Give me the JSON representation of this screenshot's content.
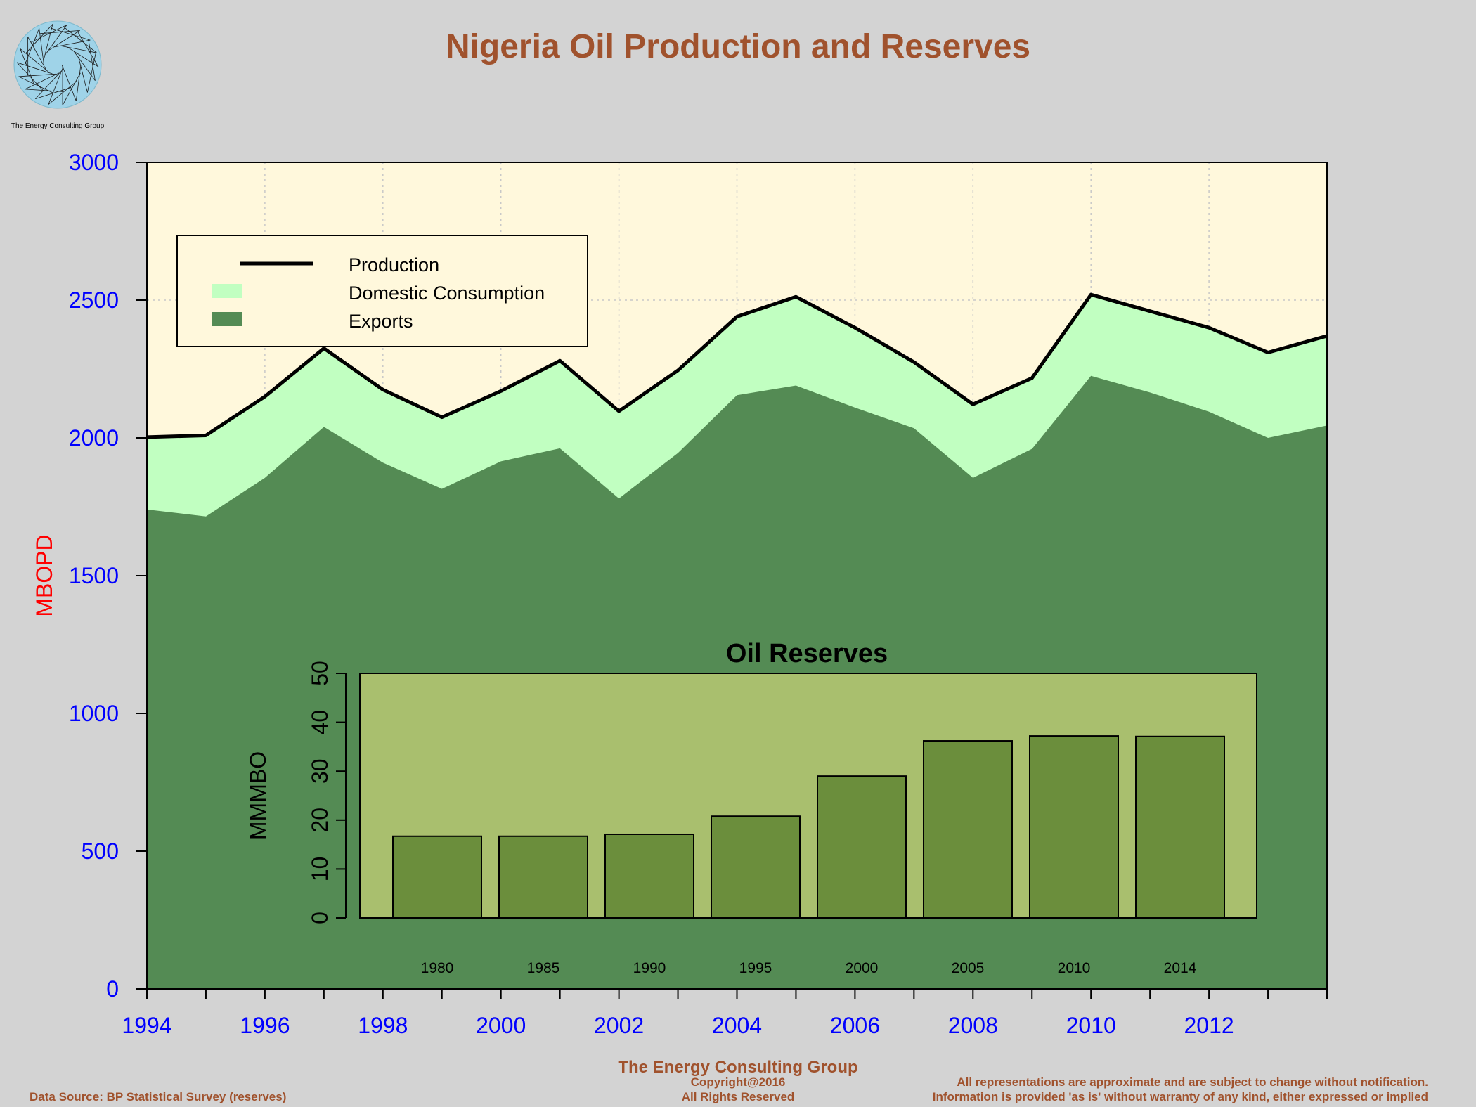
{
  "title": "Nigeria Oil Production and Reserves",
  "logo": {
    "caption": "The Energy Consulting Group",
    "icon": "spiral-logo-icon"
  },
  "colors": {
    "title": "#a0522d",
    "background": "#d3d3d3",
    "plot_background": "#fff8dc",
    "exports": "#548b54",
    "domestic": "#c1ffc1",
    "production_line": "#000000",
    "axis_ticks": "#0000ff",
    "ylabel": "#ff0000",
    "inset_background": "#a9bf6e",
    "inset_bars": "#6b8e3c",
    "footer": "#a0522d"
  },
  "chart_data": [
    {
      "type": "area",
      "title": "",
      "xlabel": "",
      "ylabel": "MBOPD",
      "xlim": [
        1994,
        2014
      ],
      "ylim": [
        0,
        3000
      ],
      "x_ticks": [
        1994,
        1996,
        1998,
        2000,
        2002,
        2004,
        2006,
        2008,
        2010,
        2012
      ],
      "y_ticks": [
        0,
        500,
        1000,
        1500,
        2000,
        2500,
        3000
      ],
      "x": [
        1994,
        1995,
        1996,
        1997,
        1998,
        1999,
        2000,
        2001,
        2002,
        2003,
        2004,
        2005,
        2006,
        2007,
        2008,
        2009,
        2010,
        2011,
        2012,
        2013,
        2014
      ],
      "series": [
        {
          "name": "Production",
          "kind": "line",
          "values": [
            2003,
            2009,
            2150,
            2325,
            2175,
            2075,
            2170,
            2280,
            2097,
            2245,
            2440,
            2512,
            2400,
            2275,
            2122,
            2217,
            2520,
            2460,
            2400,
            2310,
            2370
          ]
        },
        {
          "name": "Domestic Consumption",
          "kind": "area-top",
          "values": [
            2003,
            2009,
            2150,
            2325,
            2175,
            2075,
            2170,
            2280,
            2097,
            2245,
            2440,
            2512,
            2400,
            2275,
            2122,
            2217,
            2520,
            2460,
            2400,
            2310,
            2370
          ]
        },
        {
          "name": "Exports",
          "kind": "area",
          "values": [
            1740,
            1715,
            1855,
            2040,
            1910,
            1815,
            1915,
            1962,
            1780,
            1945,
            2155,
            2190,
            2110,
            2035,
            1855,
            1960,
            2225,
            2165,
            2095,
            2000,
            2045
          ]
        }
      ],
      "legend": {
        "position": "top-left",
        "entries": [
          "Production",
          "Domestic Consumption",
          "Exports"
        ]
      },
      "grid": true
    },
    {
      "type": "bar",
      "title": "Oil Reserves",
      "xlabel": "",
      "ylabel": "MMMBO",
      "categories": [
        "1980",
        "1985",
        "1990",
        "1995",
        "2000",
        "2005",
        "2010",
        "2014"
      ],
      "values": [
        16.7,
        16.7,
        17.1,
        20.8,
        29.0,
        36.2,
        37.2,
        37.1
      ],
      "ylim": [
        0,
        50
      ],
      "y_ticks": [
        0,
        10,
        20,
        30,
        40,
        50
      ],
      "grid": false
    }
  ],
  "footer": {
    "data_source": "Data Source: BP Statistical Survey (reserves)",
    "company": "The Energy Consulting Group",
    "copyright": "Copyright@2016",
    "rights": "All Rights Reserved",
    "disclaimer1": "All representations are approximate and are subject to change without notification.",
    "disclaimer2": "Information is provided 'as is' without warranty of any kind, either expressed or implied"
  }
}
